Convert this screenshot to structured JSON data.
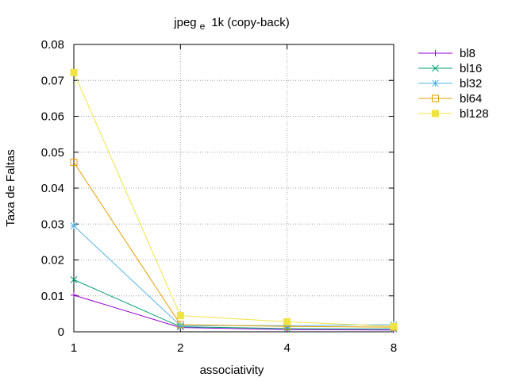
{
  "chart_data": {
    "type": "line",
    "title_main": "jpeg",
    "title_sub": "e",
    "title_rest": "1k (copy-back)",
    "xlabel": "associativity",
    "ylabel": "Taxa de Faltas",
    "x": [
      1,
      2,
      4,
      8
    ],
    "x_tick_labels": [
      "1",
      "2",
      "4",
      "8"
    ],
    "x_scale": "log2",
    "ylim": [
      0,
      0.08
    ],
    "y_ticks": [
      0,
      0.01,
      0.02,
      0.03,
      0.04,
      0.05,
      0.06,
      0.07,
      0.08
    ],
    "y_tick_labels": [
      "0",
      "0.01",
      "0.02",
      "0.03",
      "0.04",
      "0.05",
      "0.06",
      "0.07",
      "0.08"
    ],
    "grid": true,
    "legend_position": "outside-top-right",
    "series": [
      {
        "name": "bl8",
        "color": "#9400d3",
        "marker": "plus",
        "values": [
          0.0102,
          0.0012,
          0.0006,
          0.0005
        ]
      },
      {
        "name": "bl16",
        "color": "#009e73",
        "marker": "cross",
        "values": [
          0.0145,
          0.0014,
          0.0009,
          0.0008
        ]
      },
      {
        "name": "bl32",
        "color": "#56b4e9",
        "marker": "star",
        "values": [
          0.0295,
          0.0017,
          0.0017,
          0.002
        ]
      },
      {
        "name": "bl64",
        "color": "#e69f00",
        "marker": "open-square",
        "values": [
          0.0472,
          0.002,
          0.0015,
          0.0013
        ]
      },
      {
        "name": "bl128",
        "color": "#f0e442",
        "marker": "filled-square",
        "values": [
          0.0722,
          0.0045,
          0.0028,
          0.0015
        ]
      }
    ]
  }
}
